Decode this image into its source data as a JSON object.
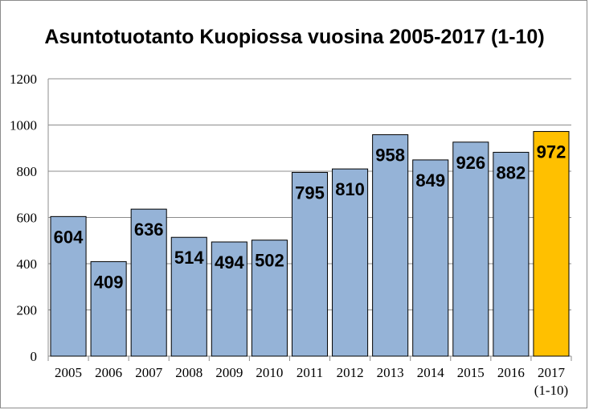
{
  "chart_data": {
    "type": "bar",
    "title": "Asuntotuotanto Kuopiossa vuosina 2005-2017 (1-10)",
    "xlabel": "",
    "ylabel": "",
    "categories": [
      "2005",
      "2006",
      "2007",
      "2008",
      "2009",
      "2010",
      "2011",
      "2012",
      "2013",
      "2014",
      "2015",
      "2016",
      "2017\n(1-10)"
    ],
    "values": [
      604,
      409,
      636,
      514,
      494,
      502,
      795,
      810,
      958,
      849,
      926,
      882,
      972
    ],
    "ylim": [
      0,
      1200
    ],
    "yticks": [
      0,
      200,
      400,
      600,
      800,
      1000,
      1200
    ],
    "grid": true,
    "legend": "none",
    "colors": {
      "default_bar": "#95b3d7",
      "highlight_bar": "#ffc000",
      "bar_outline": "#000000",
      "grid": "#8c8c8c"
    },
    "highlight_index": 12
  }
}
